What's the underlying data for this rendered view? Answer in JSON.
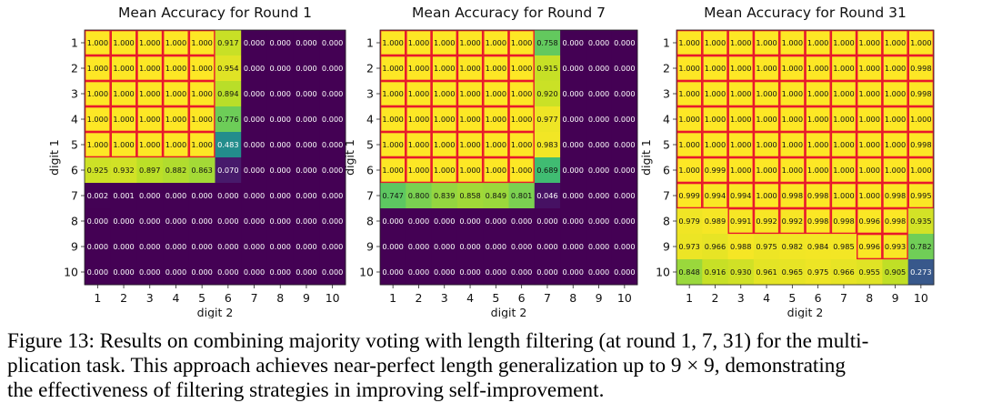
{
  "chart_data": [
    {
      "type": "heatmap",
      "title": "Mean Accuracy for Round 1",
      "xlabel": "digit 2",
      "ylabel": "digit 1",
      "x_ticks": [
        "1",
        "2",
        "3",
        "4",
        "5",
        "6",
        "7",
        "8",
        "9",
        "10"
      ],
      "y_ticks": [
        "1",
        "2",
        "3",
        "4",
        "5",
        "6",
        "7",
        "8",
        "9",
        "10"
      ],
      "value_range": [
        0,
        1
      ],
      "colormap": "viridis",
      "highlight_rule": "red border on cells with value >= 0.99",
      "values": [
        [
          1.0,
          1.0,
          1.0,
          1.0,
          1.0,
          0.917,
          0.0,
          0.0,
          0.0,
          0.0
        ],
        [
          1.0,
          1.0,
          1.0,
          1.0,
          1.0,
          0.954,
          0.0,
          0.0,
          0.0,
          0.0
        ],
        [
          1.0,
          1.0,
          1.0,
          1.0,
          1.0,
          0.894,
          0.0,
          0.0,
          0.0,
          0.0
        ],
        [
          1.0,
          1.0,
          1.0,
          1.0,
          1.0,
          0.776,
          0.0,
          0.0,
          0.0,
          0.0
        ],
        [
          1.0,
          1.0,
          1.0,
          1.0,
          1.0,
          0.483,
          0.0,
          0.0,
          0.0,
          0.0
        ],
        [
          0.925,
          0.932,
          0.897,
          0.882,
          0.863,
          0.07,
          0.0,
          0.0,
          0.0,
          0.0
        ],
        [
          0.002,
          0.001,
          0.0,
          0.0,
          0.0,
          0.0,
          0.0,
          0.0,
          0.0,
          0.0
        ],
        [
          0.0,
          0.0,
          0.0,
          0.0,
          0.0,
          0.0,
          0.0,
          0.0,
          0.0,
          0.0
        ],
        [
          0.0,
          0.0,
          0.0,
          0.0,
          0.0,
          0.0,
          0.0,
          0.0,
          0.0,
          0.0
        ],
        [
          0.0,
          0.0,
          0.0,
          0.0,
          0.0,
          0.0,
          0.0,
          0.0,
          0.0,
          0.0
        ]
      ]
    },
    {
      "type": "heatmap",
      "title": "Mean Accuracy for Round 7",
      "xlabel": "digit 2",
      "ylabel": "digit 1",
      "x_ticks": [
        "1",
        "2",
        "3",
        "4",
        "5",
        "6",
        "7",
        "8",
        "9",
        "10"
      ],
      "y_ticks": [
        "1",
        "2",
        "3",
        "4",
        "5",
        "6",
        "7",
        "8",
        "9",
        "10"
      ],
      "value_range": [
        0,
        1
      ],
      "colormap": "viridis",
      "highlight_rule": "red border on cells with value >= 0.99",
      "values": [
        [
          1.0,
          1.0,
          1.0,
          1.0,
          1.0,
          1.0,
          0.758,
          0.0,
          0.0,
          0.0
        ],
        [
          1.0,
          1.0,
          1.0,
          1.0,
          1.0,
          1.0,
          0.915,
          0.0,
          0.0,
          0.0
        ],
        [
          1.0,
          1.0,
          1.0,
          1.0,
          1.0,
          1.0,
          0.92,
          0.0,
          0.0,
          0.0
        ],
        [
          1.0,
          1.0,
          1.0,
          1.0,
          1.0,
          1.0,
          0.977,
          0.0,
          0.0,
          0.0
        ],
        [
          1.0,
          1.0,
          1.0,
          1.0,
          1.0,
          1.0,
          0.983,
          0.0,
          0.0,
          0.0
        ],
        [
          1.0,
          1.0,
          1.0,
          1.0,
          1.0,
          1.0,
          0.689,
          0.0,
          0.0,
          0.0
        ],
        [
          0.747,
          0.8,
          0.839,
          0.858,
          0.849,
          0.801,
          0.046,
          0.0,
          0.0,
          0.0
        ],
        [
          0.0,
          0.0,
          0.0,
          0.0,
          0.0,
          0.0,
          0.0,
          0.0,
          0.0,
          0.0
        ],
        [
          0.0,
          0.0,
          0.0,
          0.0,
          0.0,
          0.0,
          0.0,
          0.0,
          0.0,
          0.0
        ],
        [
          0.0,
          0.0,
          0.0,
          0.0,
          0.0,
          0.0,
          0.0,
          0.0,
          0.0,
          0.0
        ]
      ]
    },
    {
      "type": "heatmap",
      "title": "Mean Accuracy for Round 31",
      "xlabel": "digit 2",
      "ylabel": "digit 1",
      "x_ticks": [
        "1",
        "2",
        "3",
        "4",
        "5",
        "6",
        "7",
        "8",
        "9",
        "10"
      ],
      "y_ticks": [
        "1",
        "2",
        "3",
        "4",
        "5",
        "6",
        "7",
        "8",
        "9",
        "10"
      ],
      "value_range": [
        0,
        1
      ],
      "colormap": "viridis",
      "highlight_rule": "red border on cells with value >= 0.99",
      "values": [
        [
          1.0,
          1.0,
          1.0,
          1.0,
          1.0,
          1.0,
          1.0,
          1.0,
          1.0,
          1.0
        ],
        [
          1.0,
          1.0,
          1.0,
          1.0,
          1.0,
          1.0,
          1.0,
          1.0,
          1.0,
          0.998
        ],
        [
          1.0,
          1.0,
          1.0,
          1.0,
          1.0,
          1.0,
          1.0,
          1.0,
          1.0,
          0.998
        ],
        [
          1.0,
          1.0,
          1.0,
          1.0,
          1.0,
          1.0,
          1.0,
          1.0,
          1.0,
          1.0
        ],
        [
          1.0,
          1.0,
          1.0,
          1.0,
          1.0,
          1.0,
          1.0,
          1.0,
          1.0,
          0.998
        ],
        [
          1.0,
          0.999,
          1.0,
          1.0,
          1.0,
          1.0,
          1.0,
          1.0,
          1.0,
          1.0
        ],
        [
          0.999,
          0.994,
          0.994,
          1.0,
          0.998,
          0.998,
          1.0,
          1.0,
          0.998,
          0.995
        ],
        [
          0.979,
          0.989,
          0.991,
          0.992,
          0.992,
          0.998,
          0.998,
          0.996,
          0.998,
          0.935
        ],
        [
          0.973,
          0.966,
          0.988,
          0.975,
          0.982,
          0.984,
          0.985,
          0.996,
          0.993,
          0.782
        ],
        [
          0.848,
          0.916,
          0.93,
          0.961,
          0.965,
          0.975,
          0.966,
          0.955,
          0.905,
          0.273
        ]
      ]
    }
  ],
  "caption": {
    "line1": "Figure 13: Results on combining majority voting with length filtering (at round 1, 7, 31) for the multi-",
    "line2": "plication task. This approach achieves near-perfect length generalization up to 9 × 9, demonstrating",
    "line3": "the effectiveness of filtering strategies in improving self-improvement."
  }
}
